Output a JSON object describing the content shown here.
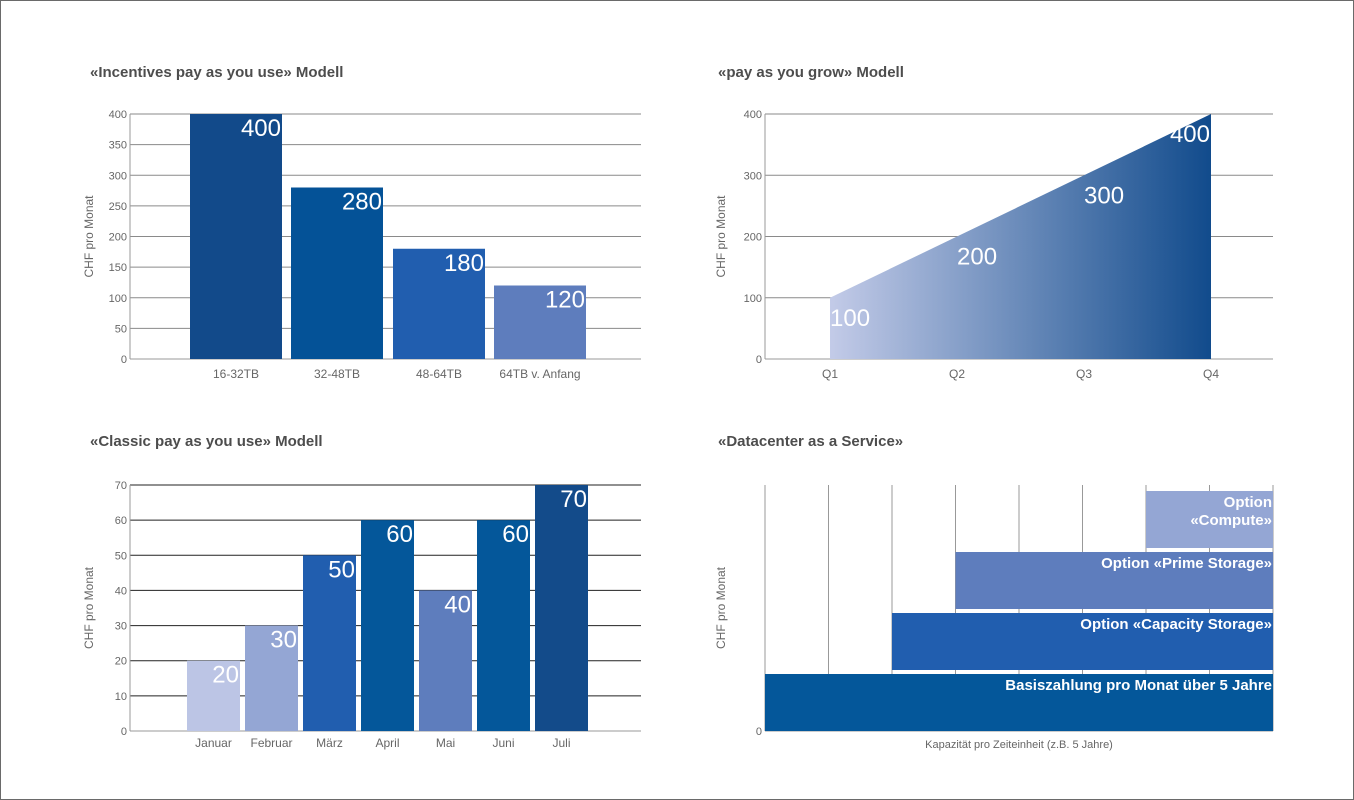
{
  "titles": {
    "incentives": "«Incentives pay as you use» Modell",
    "grow": "«pay as you grow» Modell",
    "classic": "«Classic pay as you use» Modell",
    "datacenter": "«Datacenter as a Service»"
  },
  "chart_data": [
    {
      "id": "incentives",
      "type": "bar",
      "title": "«Incentives pay as you use» Modell",
      "ylabel": "CHF pro Monat",
      "xlabel": "",
      "ylim": [
        0,
        400
      ],
      "yticks": [
        0,
        50,
        100,
        150,
        200,
        250,
        300,
        350,
        400
      ],
      "categories": [
        "16-32TB",
        "32-48TB",
        "48-64TB",
        "64TB v. Anfang"
      ],
      "values": [
        400,
        280,
        180,
        120
      ],
      "colors": [
        "#124a8a",
        "#045297",
        "#215eaf",
        "#5e7dbd"
      ],
      "grid": true
    },
    {
      "id": "grow",
      "type": "area",
      "title": "«pay as you grow» Modell",
      "ylabel": "CHF pro Monat",
      "xlabel": "",
      "ylim": [
        0,
        400
      ],
      "yticks": [
        0,
        100,
        200,
        300,
        400
      ],
      "categories": [
        "Q1",
        "Q2",
        "Q3",
        "Q4"
      ],
      "values": [
        100,
        200,
        300,
        400
      ],
      "gradient": [
        "#c3cbe8",
        "#114b8c"
      ],
      "grid": true
    },
    {
      "id": "classic",
      "type": "bar",
      "title": "«Classic pay as you use» Modell",
      "ylabel": "CHF pro Monat",
      "xlabel": "",
      "ylim": [
        0,
        70
      ],
      "yticks": [
        0,
        10,
        20,
        30,
        40,
        50,
        60,
        70
      ],
      "categories": [
        "Januar",
        "Februar",
        "März",
        "April",
        "Mai",
        "Juni",
        "Juli"
      ],
      "values": [
        20,
        30,
        50,
        60,
        40,
        60,
        70
      ],
      "colors": [
        "#bcc5e5",
        "#94a6d4",
        "#215eaf",
        "#04579a",
        "#5e7dbd",
        "#04579a",
        "#134b8a"
      ],
      "grid": true
    },
    {
      "id": "datacenter",
      "type": "bar",
      "subtype": "stacked-steps",
      "title": "«Datacenter as a Service»",
      "ylabel": "CHF pro Monat",
      "xlabel": "Kapazität pro Zeiteinheit (z.B. 5 Jahre)",
      "yticks": [
        0
      ],
      "x_divisions": 8,
      "series": [
        {
          "name": "Basiszahlung pro Monat über 5 Jahre",
          "start": 0,
          "end": 8,
          "level": 0,
          "color": "#04579a"
        },
        {
          "name": "Option «Capacity Storage»",
          "start": 2,
          "end": 8,
          "level": 1,
          "color": "#215eaf"
        },
        {
          "name": "Option «Prime Storage»",
          "start": 3,
          "end": 8,
          "level": 2,
          "color": "#5e7dbd"
        },
        {
          "name": "Option «Compute»",
          "start": 6,
          "end": 8,
          "level": 3,
          "color": "#94a6d4"
        }
      ],
      "grid": true
    }
  ]
}
